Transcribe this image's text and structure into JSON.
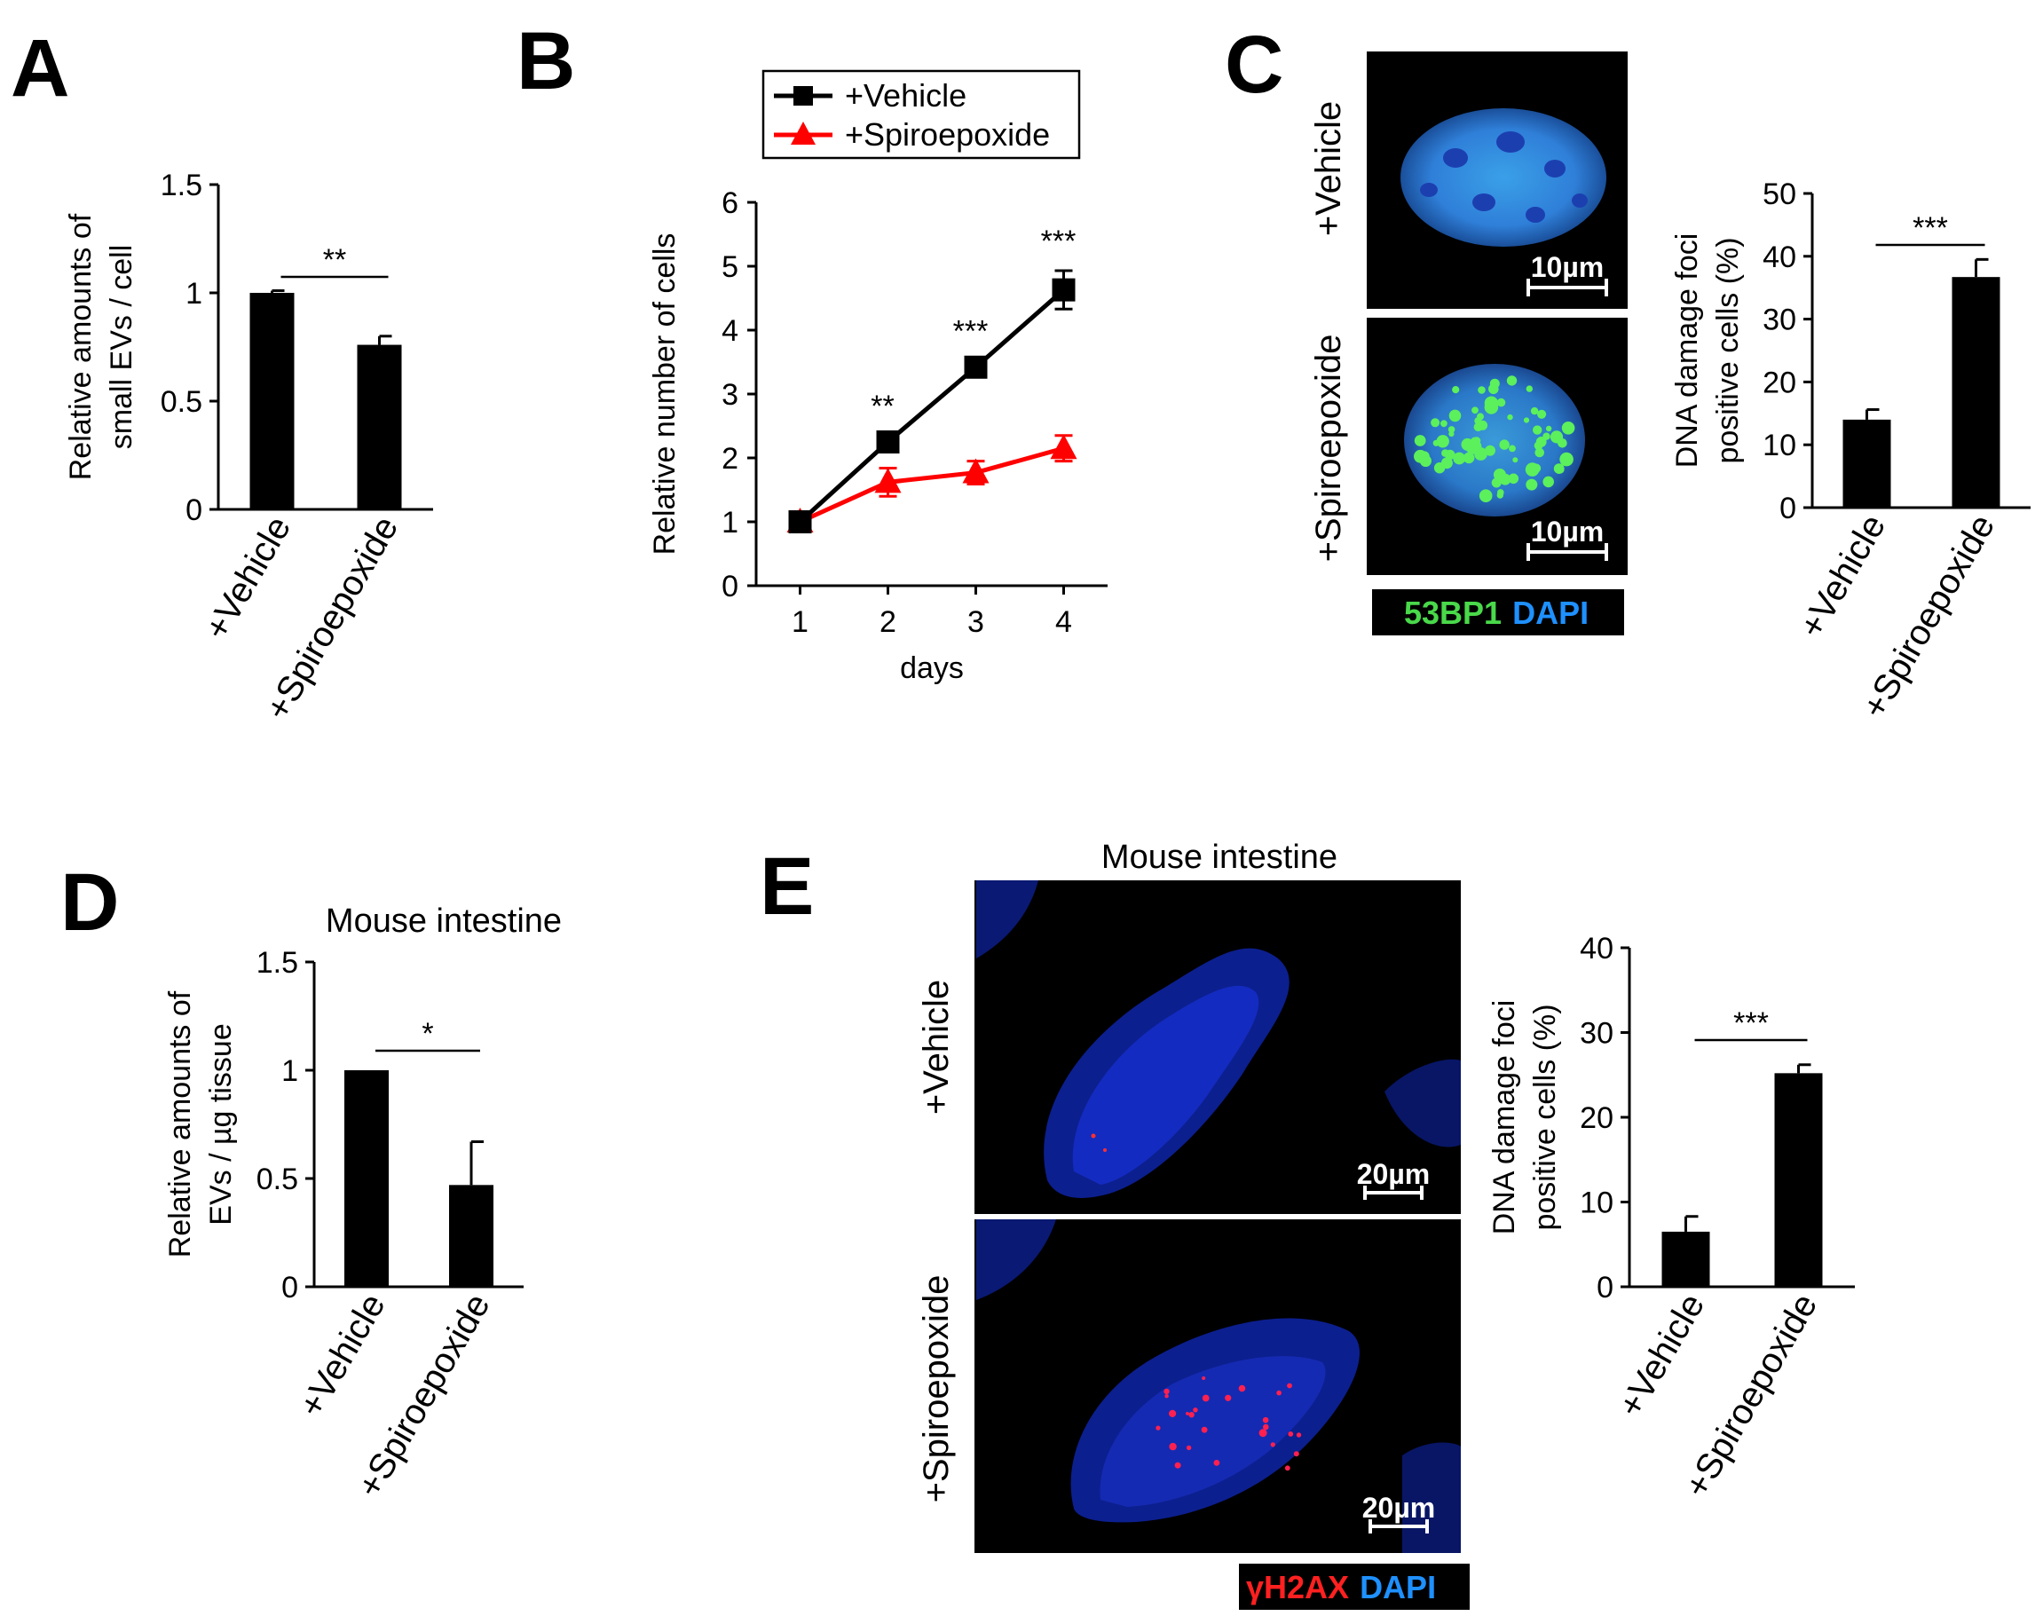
{
  "panels": {
    "A": {
      "letter": "A"
    },
    "B": {
      "letter": "B"
    },
    "C": {
      "letter": "C",
      "row_labels": [
        "+Vehicle",
        "+Spiroepoxide"
      ],
      "scale_bar": "10µm",
      "stain": {
        "part1": "53BP1",
        "part2": "DAPI",
        "color1": "#49d94a",
        "color2": "#1e90ff"
      }
    },
    "D": {
      "letter": "D"
    },
    "E": {
      "letter": "E",
      "title": "Mouse intestine",
      "row_labels": [
        "+Vehicle",
        "+Spiroepoxide"
      ],
      "scale_bar": "20µm",
      "stain": {
        "part1": "γH2AX",
        "part2": "DAPI",
        "color1": "#ff2020",
        "color2": "#1e90ff"
      }
    }
  },
  "chart_data": [
    {
      "id": "A",
      "type": "bar",
      "categories": [
        "+Vehicle",
        "+Spiroepoxide"
      ],
      "values": [
        1.0,
        0.76
      ],
      "errors": [
        0.01,
        0.04
      ],
      "ylabel_lines": [
        "Relative amounts of",
        "small EVs / cell"
      ],
      "ylim": [
        0,
        1.5
      ],
      "yticks": [
        0,
        0.5,
        1,
        1.5
      ],
      "ytick_labels": [
        "0",
        "0.5",
        "1",
        "1.5"
      ],
      "significance": {
        "label": "**",
        "between": [
          0,
          1
        ]
      },
      "grid": false
    },
    {
      "id": "B",
      "type": "line",
      "x": [
        1,
        2,
        3,
        4
      ],
      "series": [
        {
          "name": "+Vehicle",
          "values": [
            1.0,
            2.25,
            3.42,
            4.63
          ],
          "errors": [
            0.05,
            0.1,
            0.1,
            0.3
          ],
          "color": "#000000",
          "marker": "square"
        },
        {
          "name": "+Spiroepoxide",
          "values": [
            1.0,
            1.62,
            1.77,
            2.15
          ],
          "errors": [
            0.05,
            0.22,
            0.18,
            0.2
          ],
          "color": "#ff0000",
          "marker": "triangle"
        }
      ],
      "xlabel": "days",
      "ylabel": "Relative number of cells",
      "xlim": [
        0.5,
        4.5
      ],
      "xticks": [
        1,
        2,
        3,
        4
      ],
      "ylim": [
        0,
        6
      ],
      "yticks": [
        0,
        1,
        2,
        3,
        4,
        5,
        6
      ],
      "point_annotations": [
        {
          "x": 2,
          "label": "**"
        },
        {
          "x": 3,
          "label": "***"
        },
        {
          "x": 4,
          "label": "***"
        }
      ],
      "legend": "top-center",
      "grid": false
    },
    {
      "id": "C",
      "type": "bar",
      "categories": [
        "+Vehicle",
        "+Spiroepoxide"
      ],
      "values": [
        14,
        36.7
      ],
      "errors": [
        1.6,
        2.8
      ],
      "ylabel_lines": [
        "DNA damage foci",
        "positive cells (%)"
      ],
      "ylim": [
        0,
        50
      ],
      "yticks": [
        0,
        10,
        20,
        30,
        40,
        50
      ],
      "significance": {
        "label": "***",
        "between": [
          0,
          1
        ]
      },
      "grid": false
    },
    {
      "id": "D",
      "type": "bar",
      "title": "Mouse intestine",
      "categories": [
        "+Vehicle",
        "+Spiroepoxide"
      ],
      "values": [
        1.0,
        0.47
      ],
      "errors": [
        0.0,
        0.2
      ],
      "ylabel_lines": [
        "Relative amounts of",
        "EVs / µg tissue"
      ],
      "ylim": [
        0,
        1.5
      ],
      "yticks": [
        0,
        0.5,
        1,
        1.5
      ],
      "ytick_labels": [
        "0",
        "0.5",
        "1",
        "1.5"
      ],
      "significance": {
        "label": "*",
        "between": [
          0,
          1
        ]
      },
      "grid": false
    },
    {
      "id": "E",
      "type": "bar",
      "categories": [
        "+Vehicle",
        "+Spiroepoxide"
      ],
      "values": [
        6.5,
        25.2
      ],
      "errors": [
        1.8,
        1.0
      ],
      "ylabel_lines": [
        "DNA damage foci",
        "positive cells (%)"
      ],
      "ylim": [
        0,
        40
      ],
      "yticks": [
        0,
        10,
        20,
        30,
        40
      ],
      "significance": {
        "label": "***",
        "between": [
          0,
          1
        ]
      },
      "grid": false
    }
  ]
}
